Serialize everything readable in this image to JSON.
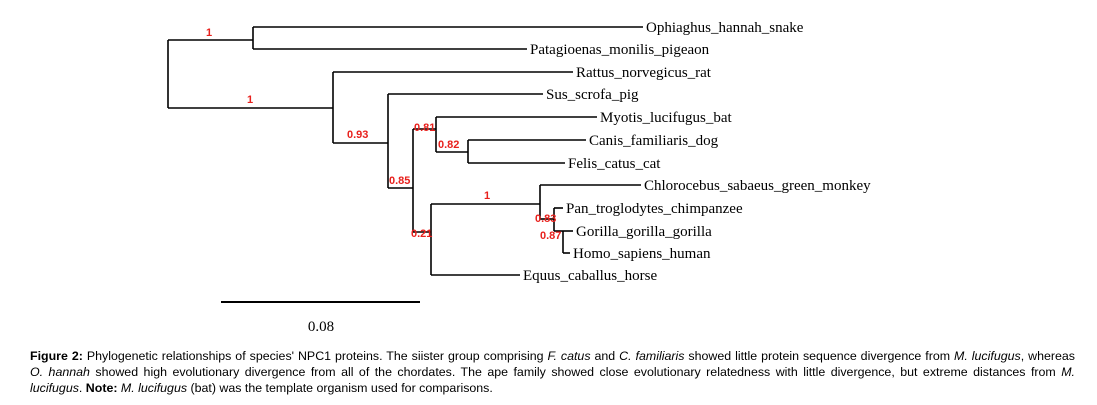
{
  "tree": {
    "leaves": {
      "snake": "Ophiaghus_hannah_snake",
      "pigeon": "Patagioenas_monilis_pigeaon",
      "rat": "Rattus_norvegicus_rat",
      "pig": "Sus_scrofa_pig",
      "bat": "Myotis_lucifugus_bat",
      "dog": "Canis_familiaris_dog",
      "cat": "Felis_catus_cat",
      "monkey": "Chlorocebus_sabaeus_green_monkey",
      "chimp": "Pan_troglodytes_chimpanzee",
      "gorilla": "Gorilla_gorilla_gorilla",
      "human": "Homo_sapiens_human",
      "horse": "Equus_caballus_horse"
    },
    "support": {
      "snake_pigeon": "1",
      "mammals": "1",
      "rat_split": "0.93",
      "laurasia": "0.85",
      "bat_split": "0.81",
      "dog_cat": "0.82",
      "horse_split": "0.21",
      "primates": "1",
      "chimp_node": "0.83",
      "gorilla_node": "0.87"
    }
  },
  "scale_bar": {
    "label": "0.08"
  },
  "caption": {
    "figure_label": "Figure 2:",
    "p1": " Phylogenetic relationships of species' NPC1 proteins. The siister group comprising ",
    "sp1": "F. catus",
    "p2": " and ",
    "sp2": "C. familiaris",
    "p3": " showed little protein sequence divergence from ",
    "sp3": "M. lucifugus",
    "p4": ", whereas ",
    "sp4": "O. hannah",
    "p5": " showed high evolutionary divergence from all of the chordates. The ape family showed close evolutionary relatedness with little divergence, but extreme distances from ",
    "sp5": "M. lucifugus",
    "p6": ". ",
    "note_label": "Note:",
    "p7": " ",
    "sp6": "M. lucifugus",
    "p8": " (bat) was the template organism used for comparisons."
  }
}
